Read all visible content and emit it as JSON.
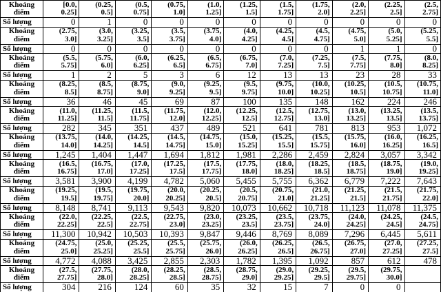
{
  "page": {
    "background_color": "#ffffff",
    "border_color": "#000000",
    "text_color": "#000000"
  },
  "table": {
    "interval_row_label": "Khoảng điểm",
    "count_row_label": "Số lượng",
    "columns_per_group": 11,
    "groups": [
      {
        "intervals": [
          "[0.0, 0.25]",
          "(0.25, 0.5]",
          "(0.5, 0.75]",
          "(0.75, 1.0]",
          "(1.0, 1.25]",
          "(1.25, 1.5]",
          "(1.5, 1.75]",
          "(1.75, 2.0]",
          "(2.0, 2.25]",
          "(2.25, 2.5]",
          "(2.5, 2.75]"
        ],
        "counts": [
          "0",
          "1",
          "0",
          "0",
          "0",
          "0",
          "0",
          "0",
          "0",
          "0",
          "0"
        ]
      },
      {
        "intervals": [
          "(2.75, 3.0]",
          "(3.0, 3.25]",
          "(3.25, 3.5]",
          "(3.5, 3.75]",
          "(3.75, 4.0]",
          "(4.0, 4.25]",
          "(4.25, 4.5]",
          "(4.5, 4.75]",
          "(4.75, 5.0]",
          "(5.0, 5.25]",
          "(5.25, 5.5]"
        ],
        "counts": [
          "0",
          "0",
          "0",
          "0",
          "0",
          "0",
          "0",
          "0",
          "1",
          "1",
          "0"
        ]
      },
      {
        "intervals": [
          "(5.5, 5.75]",
          "(5.75, 6.0]",
          "(6.0, 6.25]",
          "(6.25, 6.5]",
          "(6.5, 6.75]",
          "(6.75, 7.0]",
          "(7.0, 7.25]",
          "(7.25, 7.5]",
          "(7.5, 7.75]",
          "(7.75, 8.0]",
          "(8.0, 8.25]"
        ],
        "counts": [
          "1",
          "2",
          "5",
          "3",
          "6",
          "12",
          "13",
          "13",
          "23",
          "28",
          "33"
        ]
      },
      {
        "intervals": [
          "(8.25, 8.5]",
          "(8.5, 8.75]",
          "(8.75, 9.0]",
          "(9.0, 9.25]",
          "(9.25, 9.5]",
          "(9.5, 9.75]",
          "(9.75, 10.0]",
          "(10.0, 10.25]",
          "(10.25, 10.5]",
          "(10.5, 10.75]",
          "(10.75, 11.0]"
        ],
        "counts": [
          "36",
          "46",
          "45",
          "69",
          "87",
          "100",
          "135",
          "148",
          "162",
          "224",
          "246"
        ]
      },
      {
        "intervals": [
          "(11.0, 11.25]",
          "(11.25, 11.5]",
          "(11.5, 11.75]",
          "(11.75, 12.0]",
          "(12.0, 12.25]",
          "(12.25, 12.5]",
          "(12.5, 12.75]",
          "(12.75, 13.0]",
          "(13.0, 13.25]",
          "(13.25, 13.5]",
          "(13.5, 13.75]"
        ],
        "counts": [
          "282",
          "345",
          "351",
          "437",
          "489",
          "521",
          "641",
          "781",
          "813",
          "953",
          "1,072"
        ]
      },
      {
        "intervals": [
          "(13.75, 14.0]",
          "(14.0, 14.25]",
          "(14.25, 14.5]",
          "(14.5, 14.75]",
          "(14.75, 15.0]",
          "(15.0, 15.25]",
          "(15.25, 15.5]",
          "(15.5, 15.75]",
          "(15.75, 16.0]",
          "(16.0, 16.25]",
          "(16.25, 16.5]"
        ],
        "counts": [
          "1,245",
          "1,404",
          "1,447",
          "1,694",
          "1,812",
          "1,981",
          "2,286",
          "2,459",
          "2,824",
          "3,057",
          "3,342"
        ]
      },
      {
        "intervals": [
          "(16.5, 16.75]",
          "(16.75, 17.0]",
          "(17.0, 17.25]",
          "(17.25, 17.5]",
          "(17.5, 17.75]",
          "(17.75, 18.0]",
          "(18.0, 18.25]",
          "(18.25, 18.5]",
          "(18.5, 18.75]",
          "(18.75, 19.0]",
          "(19.0, 19.25]"
        ],
        "counts": [
          "3,581",
          "3,900",
          "4,199",
          "4,782",
          "5,060",
          "5,455",
          "5,755",
          "6,362",
          "6,779",
          "7,222",
          "7,643"
        ]
      },
      {
        "intervals": [
          "(19.25, 19.5]",
          "(19.5, 19.75]",
          "(19.75, 20.0]",
          "(20.0, 20.25]",
          "(20.25, 20.5]",
          "(20.5, 20.75]",
          "(20.75, 21.0]",
          "(21.0, 21.25]",
          "(21.25, 21.5]",
          "(21.5, 21.75]",
          "(21.75, 22.0]"
        ],
        "counts": [
          "8,148",
          "8,741",
          "9,113",
          "9,543",
          "9,820",
          "10,073",
          "10,662",
          "10,718",
          "11,123",
          "11,078",
          "11,375"
        ]
      },
      {
        "intervals": [
          "(22.0, 22.25]",
          "(22.25, 22.5]",
          "(22.5, 22.75]",
          "(22.75, 23.0]",
          "(23.0, 23.25]",
          "(23.25, 23.5]",
          "(23.5, 23.75]",
          "(23.75, 24.0]",
          "(24.0, 24.25]",
          "(24.25, 24.5]",
          "(24.5, 24.75]"
        ],
        "counts": [
          "11,300",
          "10,942",
          "10,503",
          "10,393",
          "9,847",
          "9,446",
          "8,769",
          "8,089",
          "7,296",
          "6,445",
          "5,611"
        ]
      },
      {
        "intervals": [
          "(24.75, 25.0]",
          "(25.0, 25.25]",
          "(25.25, 25.5]",
          "(25.5, 25.75]",
          "(25.75, 26.0]",
          "(26.0, 26.25]",
          "(26.25, 26.5]",
          "(26.5, 26.75]",
          "(26.75, 27.0]",
          "(27.0, 27.25]",
          "(27.25, 27.5]"
        ],
        "counts": [
          "4,772",
          "4,088",
          "3,425",
          "2,855",
          "2,303",
          "1,782",
          "1,395",
          "1,092",
          "857",
          "612",
          "478"
        ]
      },
      {
        "intervals": [
          "(27.5, 27.75]",
          "(27.75, 28.0]",
          "(28.0, 28.25]",
          "(28.25, 28.5]",
          "(28.5, 28.75]",
          "(28.75, 29.0]",
          "(29.0, 29.25]",
          "(29.25, 29.5]",
          "(29.5, 29.75]",
          "(29.75, 30.0]",
          ""
        ],
        "counts": [
          "304",
          "216",
          "124",
          "60",
          "35",
          "32",
          "15",
          "7",
          "0",
          "0",
          ""
        ]
      }
    ]
  }
}
